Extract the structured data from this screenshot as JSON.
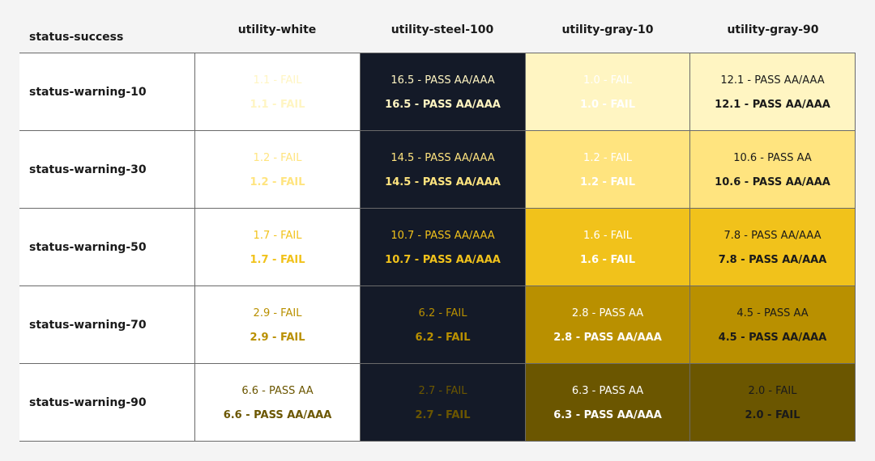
{
  "corner_label": "status-success",
  "columns": [
    {
      "label": "utility-white",
      "bg": "#ffffff"
    },
    {
      "label": "utility-steel-100",
      "bg": "#141a28"
    },
    {
      "label": "utility-gray-10",
      "bg": "#ffffff"
    },
    {
      "label": "utility-gray-90",
      "bg": "#ffffff"
    }
  ],
  "rows": [
    {
      "label": "status-warning-10",
      "swatch": "#fff5c2",
      "cells": [
        {
          "bg": "#ffffff",
          "fg": "#fff5c2",
          "line1": "1.1 - FAIL",
          "line2": "1.1 - FAIL"
        },
        {
          "bg": "#141a28",
          "fg": "#fff5c2",
          "line1": "16.5 - PASS AA/AAA",
          "line2": "16.5 - PASS AA/AAA"
        },
        {
          "bg": "#fff5c2",
          "fg": "#ffffff",
          "line1": "1.0 - FAIL",
          "line2": "1.0 - FAIL"
        },
        {
          "bg": "#fff5c2",
          "fg": "#1a1a1a",
          "line1": "12.1 - PASS AA/AAA",
          "line2": "12.1 - PASS AA/AAA"
        }
      ]
    },
    {
      "label": "status-warning-30",
      "swatch": "#ffe47f",
      "cells": [
        {
          "bg": "#ffffff",
          "fg": "#ffe47f",
          "line1": "1.2 - FAIL",
          "line2": "1.2 - FAIL"
        },
        {
          "bg": "#141a28",
          "fg": "#ffe47f",
          "line1": "14.5 - PASS AA/AAA",
          "line2": "14.5 - PASS AA/AAA"
        },
        {
          "bg": "#ffe47f",
          "fg": "#ffffff",
          "line1": "1.2 - FAIL",
          "line2": "1.2 - FAIL"
        },
        {
          "bg": "#ffe47f",
          "fg": "#1a1a1a",
          "line1": "10.6 - PASS AA",
          "line2": "10.6 - PASS AA/AAA"
        }
      ]
    },
    {
      "label": "status-warning-50",
      "swatch": "#f1c21b",
      "cells": [
        {
          "bg": "#ffffff",
          "fg": "#f1c21b",
          "line1": "1.7 - FAIL",
          "line2": "1.7 - FAIL"
        },
        {
          "bg": "#141a28",
          "fg": "#f1c21b",
          "line1": "10.7 - PASS AA/AAA",
          "line2": "10.7 - PASS AA/AAA"
        },
        {
          "bg": "#f1c21b",
          "fg": "#ffffff",
          "line1": "1.6 - FAIL",
          "line2": "1.6 - FAIL"
        },
        {
          "bg": "#f1c21b",
          "fg": "#1a1a1a",
          "line1": "7.8 - PASS AA/AAA",
          "line2": "7.8 - PASS AA/AAA"
        }
      ]
    },
    {
      "label": "status-warning-70",
      "swatch": "#b99000",
      "cells": [
        {
          "bg": "#ffffff",
          "fg": "#b99000",
          "line1": "2.9 - FAIL",
          "line2": "2.9 - FAIL"
        },
        {
          "bg": "#141a28",
          "fg": "#b99000",
          "line1": "6.2 - FAIL",
          "line2": "6.2 - FAIL"
        },
        {
          "bg": "#b99000",
          "fg": "#ffffff",
          "line1": "2.8 - PASS AA",
          "line2": "2.8 - PASS AA/AAA"
        },
        {
          "bg": "#b99000",
          "fg": "#1a1a1a",
          "line1": "4.5 - PASS AA",
          "line2": "4.5 - PASS AA/AAA"
        }
      ]
    },
    {
      "label": "status-warning-90",
      "swatch": "#6b5600",
      "cells": [
        {
          "bg": "#ffffff",
          "fg": "#6b5600",
          "line1": "6.6 - PASS AA",
          "line2": "6.6 - PASS AA/AAA"
        },
        {
          "bg": "#141a28",
          "fg": "#6b5600",
          "line1": "2.7 - FAIL",
          "line2": "2.7 - FAIL"
        },
        {
          "bg": "#6b5600",
          "fg": "#ffffff",
          "line1": "6.3 - PASS AA",
          "line2": "6.3 - PASS AA/AAA"
        },
        {
          "bg": "#6b5600",
          "fg": "#1a1a1a",
          "line1": "2.0 - FAIL",
          "line2": "2.0 - FAIL"
        }
      ]
    }
  ]
}
